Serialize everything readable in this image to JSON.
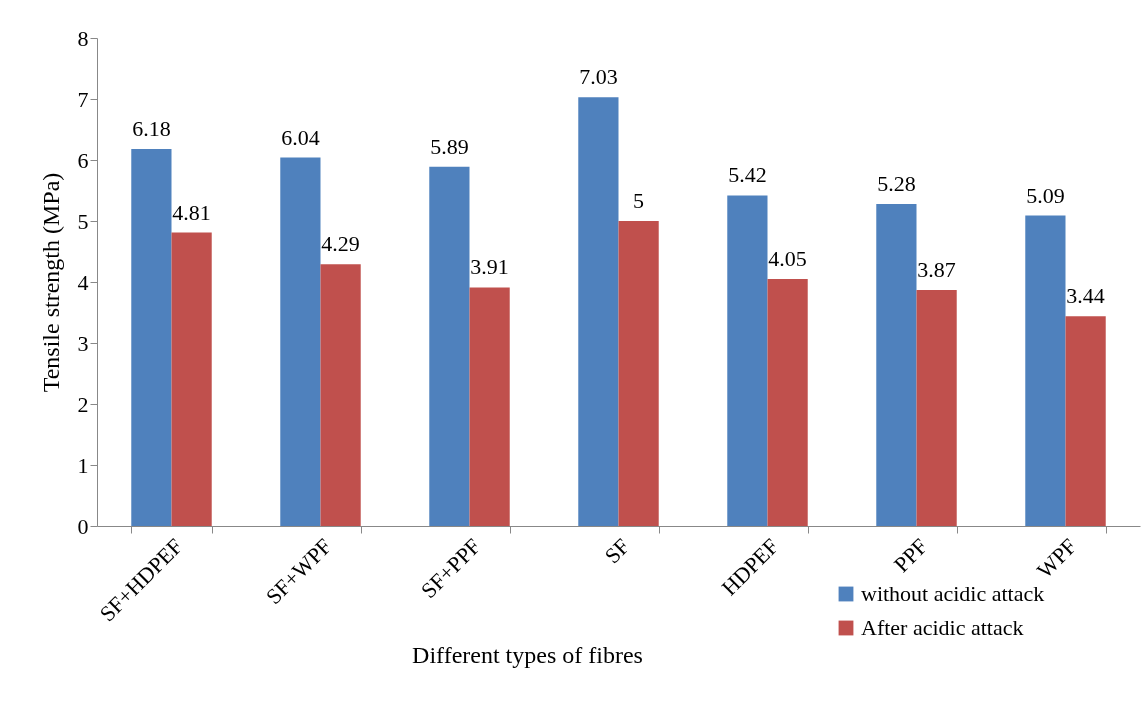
{
  "chart_data": {
    "type": "bar",
    "xlabel": "Different types of fibres",
    "ylabel": "Tensile strength (MPa)",
    "categories": [
      "SF+HDPEF",
      "SF+WPF",
      "SF+PPF",
      "SF",
      "HDPEF",
      "PPF",
      "WPF"
    ],
    "series": [
      {
        "name": "without acidic attack",
        "color": "#4f81bd",
        "values": [
          6.18,
          6.04,
          5.89,
          7.03,
          5.42,
          5.28,
          5.09
        ]
      },
      {
        "name": "After acidic attack",
        "color": "#c0504d",
        "values": [
          4.81,
          4.29,
          3.91,
          5,
          4.05,
          3.87,
          3.44
        ]
      }
    ],
    "ylim": [
      0,
      8
    ],
    "yticks": [
      0,
      1,
      2,
      3,
      4,
      5,
      6,
      7,
      8
    ],
    "grid": false,
    "legend": "bottom right",
    "data_labels": true
  }
}
